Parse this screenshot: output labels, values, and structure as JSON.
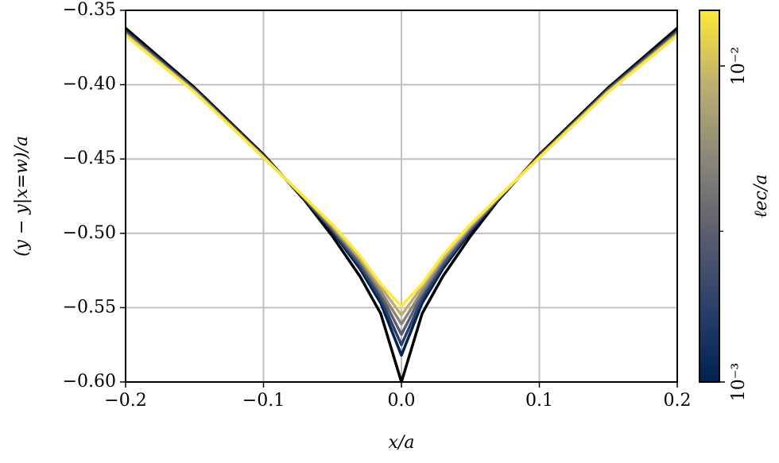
{
  "chart_data": {
    "type": "line",
    "xlabel": "x/a",
    "ylabel": "(y − y|x=w)/a",
    "x": [
      -0.2,
      -0.15,
      -0.1,
      -0.07,
      -0.05,
      -0.03,
      -0.015,
      0,
      0.015,
      0.03,
      0.05,
      0.07,
      0.1,
      0.15,
      0.2
    ],
    "series": [
      {
        "color": "#000000",
        "values": [
          -0.362,
          -0.402,
          -0.447,
          -0.478,
          -0.502,
          -0.529,
          -0.554,
          -0.6,
          -0.554,
          -0.529,
          -0.502,
          -0.478,
          -0.447,
          -0.402,
          -0.362
        ]
      },
      {
        "color": "#00224e",
        "values": [
          -0.364,
          -0.403,
          -0.448,
          -0.477,
          -0.499,
          -0.524,
          -0.547,
          -0.582,
          -0.547,
          -0.524,
          -0.499,
          -0.477,
          -0.448,
          -0.403,
          -0.364
        ]
      },
      {
        "color": "#2a406c",
        "values": [
          -0.364,
          -0.403,
          -0.448,
          -0.477,
          -0.498,
          -0.522,
          -0.544,
          -0.575,
          -0.544,
          -0.522,
          -0.498,
          -0.477,
          -0.448,
          -0.403,
          -0.364
        ]
      },
      {
        "color": "#5b5e6e",
        "values": [
          -0.365,
          -0.404,
          -0.448,
          -0.477,
          -0.497,
          -0.52,
          -0.541,
          -0.568,
          -0.541,
          -0.52,
          -0.497,
          -0.477,
          -0.448,
          -0.404,
          -0.365
        ]
      },
      {
        "color": "#8a8779",
        "values": [
          -0.366,
          -0.404,
          -0.449,
          -0.476,
          -0.496,
          -0.518,
          -0.539,
          -0.561,
          -0.539,
          -0.518,
          -0.496,
          -0.476,
          -0.449,
          -0.404,
          -0.366
        ]
      },
      {
        "color": "#bcaf6f",
        "values": [
          -0.366,
          -0.405,
          -0.449,
          -0.476,
          -0.495,
          -0.517,
          -0.536,
          -0.555,
          -0.536,
          -0.517,
          -0.495,
          -0.476,
          -0.449,
          -0.405,
          -0.366
        ]
      },
      {
        "color": "#fee838",
        "values": [
          -0.367,
          -0.405,
          -0.449,
          -0.476,
          -0.494,
          -0.515,
          -0.534,
          -0.549,
          -0.534,
          -0.515,
          -0.494,
          -0.476,
          -0.449,
          -0.405,
          -0.367
        ]
      }
    ],
    "xlim": [
      -0.2,
      0.2
    ],
    "xticks": [
      {
        "value": -0.2,
        "label": "−0.2"
      },
      {
        "value": -0.1,
        "label": "−0.1"
      },
      {
        "value": 0,
        "label": "0.0"
      },
      0.1,
      0.2
    ],
    "ylim": [
      -0.6,
      -0.35
    ],
    "yticks": [
      {
        "value": -0.6,
        "label": "−0.60"
      },
      {
        "value": -0.55,
        "label": "−0.55"
      },
      {
        "value": -0.5,
        "label": "−0.50"
      },
      {
        "value": -0.45,
        "label": "−0.45"
      },
      {
        "value": -0.4,
        "label": "−0.40"
      },
      {
        "value": -0.35,
        "label": "−0.35"
      }
    ],
    "grid": true,
    "colorbar": {
      "label": "ℓec/a",
      "log": true,
      "lim": [
        0.001,
        0.015
      ],
      "ticks": [
        {
          "value": 0.001,
          "label": "10⁻³"
        },
        {
          "value": 0.01,
          "label": "10⁻²"
        }
      ],
      "minor_ticks": [
        0.003
      ],
      "colors": [
        "#00224e",
        "#2a406c",
        "#5b5e6e",
        "#8a8779",
        "#bcaf6f",
        "#fee838"
      ]
    }
  }
}
